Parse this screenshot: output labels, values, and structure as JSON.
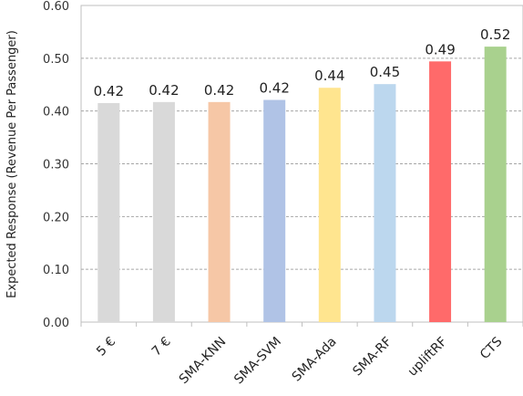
{
  "chart_data": {
    "type": "bar",
    "title": "",
    "xlabel": "",
    "ylabel": "Expected Response (Revenue Per Passenger)",
    "ylim": [
      0,
      0.6
    ],
    "yticks": [
      "0.00",
      "0.10",
      "0.20",
      "0.30",
      "0.40",
      "0.50",
      "0.60"
    ],
    "grid": true,
    "legend": "none",
    "categories": [
      "5 €",
      "7 €",
      "SMA-KNN",
      "SMA-SVM",
      "SMA-Ada",
      "SMA-RF",
      "upliftRF",
      "CTS"
    ],
    "values": [
      0.415,
      0.417,
      0.417,
      0.421,
      0.444,
      0.451,
      0.494,
      0.522
    ],
    "data_labels": [
      "0.42",
      "0.42",
      "0.42",
      "0.42",
      "0.44",
      "0.45",
      "0.49",
      "0.52"
    ],
    "colors": [
      "#d9d9d9",
      "#d9d9d9",
      "#f6c7a6",
      "#b0c3e6",
      "#ffe58f",
      "#bcd7ee",
      "#ff6a6a",
      "#a9d18e"
    ]
  }
}
